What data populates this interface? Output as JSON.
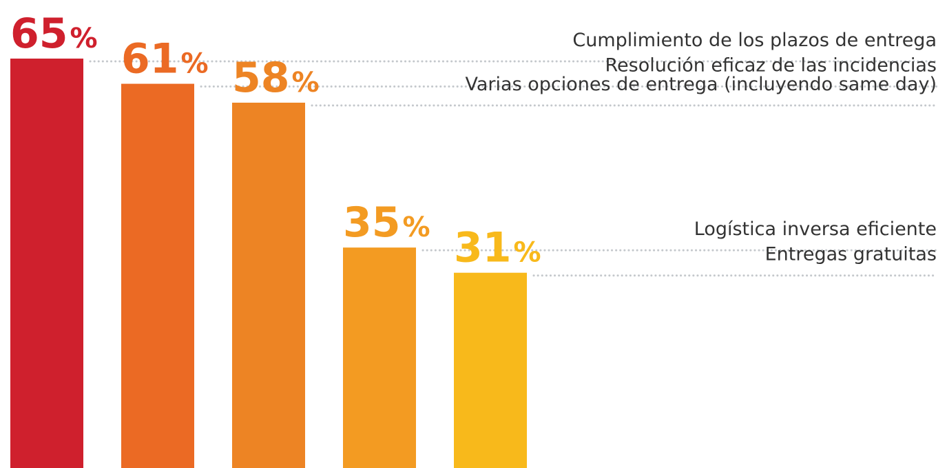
{
  "chart_data": {
    "type": "bar",
    "categories": [
      "Cumplimiento de los plazos de entrega",
      "Resolución eficaz de las incidencias",
      "Varias opciones de entrega (incluyendo same day)",
      "Logística inversa eficiente",
      "Entregas gratuitas"
    ],
    "values": [
      65,
      61,
      58,
      35,
      31
    ],
    "value_labels": [
      "65%",
      "61%",
      "58%",
      "35%",
      "31%"
    ],
    "colors": [
      "#cf202d",
      "#eb6a24",
      "#ed8424",
      "#f39b22",
      "#f8b91b"
    ]
  }
}
